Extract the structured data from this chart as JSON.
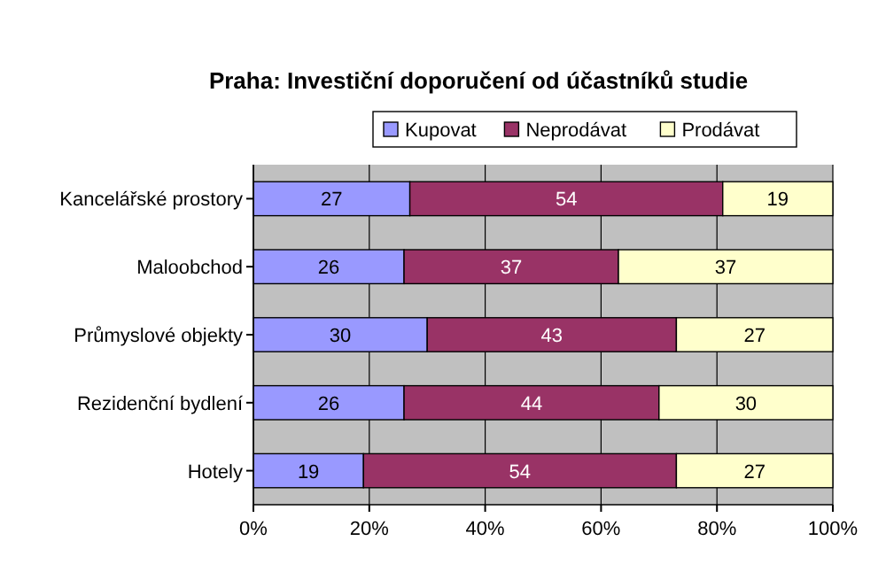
{
  "chart_data": {
    "type": "bar",
    "title": "Praha: Investiční doporučení od účastníků studie",
    "orientation": "horizontal",
    "stacked": true,
    "data_labels": true,
    "legend": "top",
    "grid": "x",
    "categories": [
      "Kancelářské prostory",
      "Maloobchod",
      "Průmyslové objekty",
      "Rezidenční bydlení",
      "Hotely"
    ],
    "series": [
      {
        "name": "Kupovat",
        "color": "#9999ff",
        "values": [
          27,
          26,
          30,
          26,
          19
        ]
      },
      {
        "name": "Neprodávat",
        "color": "#993366",
        "values": [
          54,
          37,
          43,
          44,
          54
        ]
      },
      {
        "name": "Prodávat",
        "color": "#ffffcc",
        "values": [
          19,
          37,
          27,
          30,
          27
        ]
      }
    ],
    "xlim": [
      0,
      100
    ],
    "xticks": [
      {
        "value": 0,
        "label": "0%"
      },
      {
        "value": 20,
        "label": "20%"
      },
      {
        "value": 40,
        "label": "40%"
      },
      {
        "value": 60,
        "label": "60%"
      },
      {
        "value": 80,
        "label": "80%"
      },
      {
        "value": 100,
        "label": "100%"
      }
    ]
  }
}
